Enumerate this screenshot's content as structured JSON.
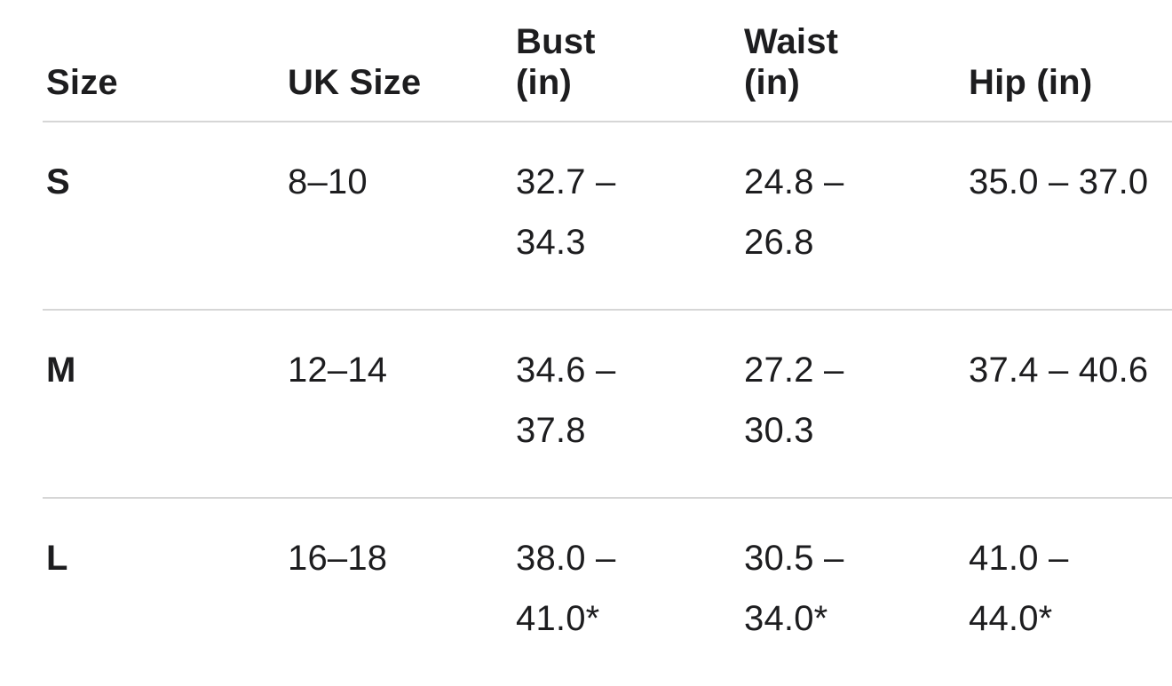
{
  "page": {
    "background_color": "#ffffff",
    "text_color": "#1d1d1f",
    "divider_color": "#d6d6d6"
  },
  "size_chart": {
    "columns": [
      {
        "label": "Size"
      },
      {
        "label": "UK Size"
      },
      {
        "label": "Bust\n(in)"
      },
      {
        "label": "Waist\n(in)"
      },
      {
        "label": "Hip (in)"
      }
    ],
    "rows": [
      {
        "size": "S",
        "uk_size": "8–10",
        "bust": "32.7 –\n34.3",
        "waist": "24.8 –\n26.8",
        "hip": "35.0 – 37.0"
      },
      {
        "size": "M",
        "uk_size": "12–14",
        "bust": "34.6 –\n37.8",
        "waist": "27.2 –\n30.3",
        "hip": "37.4 – 40.6"
      },
      {
        "size": "L",
        "uk_size": "16–18",
        "bust": "38.0 –\n41.0*",
        "waist": "30.5 –\n34.0*",
        "hip": "41.0 –\n44.0*"
      }
    ]
  },
  "chart_data": {
    "type": "table",
    "title": "",
    "columns": [
      "Size",
      "UK Size",
      "Bust (in)",
      "Waist (in)",
      "Hip (in)"
    ],
    "rows": [
      [
        "S",
        "8–10",
        "32.7 – 34.3",
        "24.8 – 26.8",
        "35.0 – 37.0"
      ],
      [
        "M",
        "12–14",
        "34.6 – 37.8",
        "27.2 – 30.3",
        "37.4 – 40.6"
      ],
      [
        "L",
        "16–18",
        "38.0 – 41.0*",
        "30.5 – 34.0*",
        "41.0 – 44.0*"
      ]
    ]
  }
}
